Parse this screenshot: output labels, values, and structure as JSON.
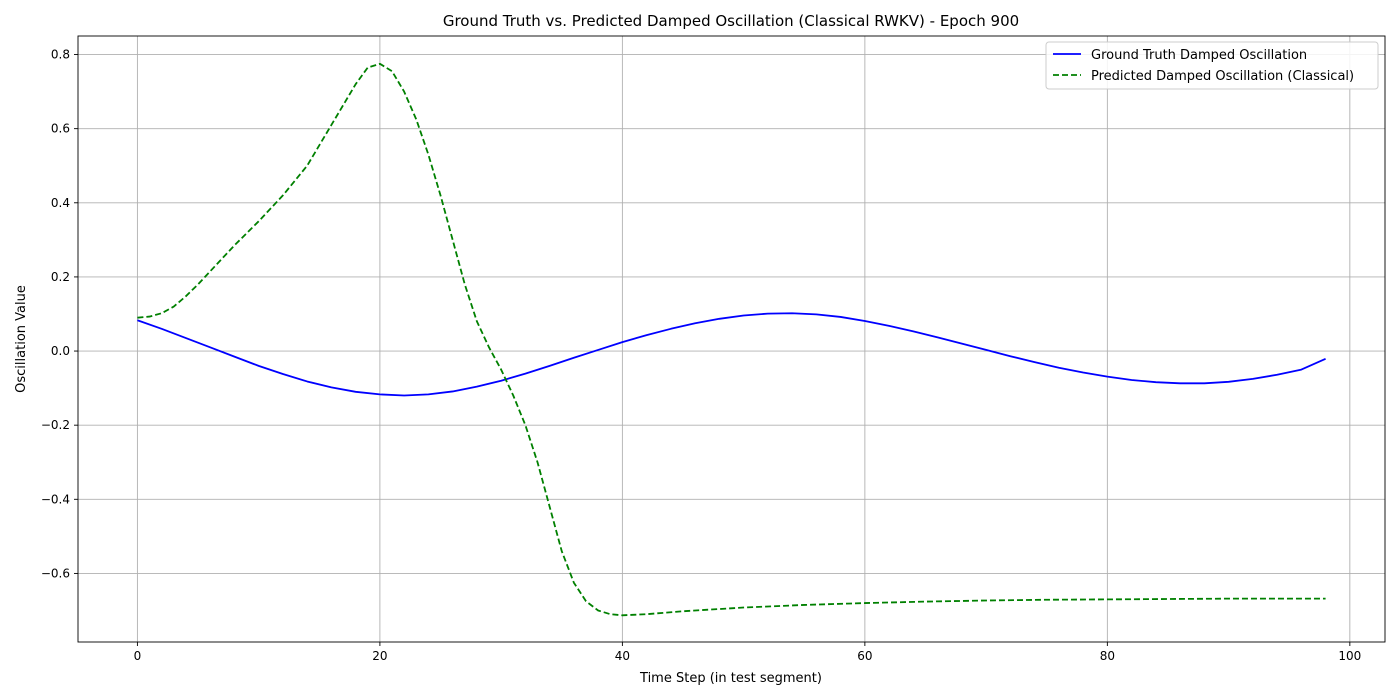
{
  "chart_data": {
    "type": "line",
    "title": "Ground Truth vs. Predicted Damped Oscillation (Classical RWKV) - Epoch 900",
    "xlabel": "Time Step (in test segment)",
    "ylabel": "Oscillation Value",
    "xlim": [
      -4.9,
      102.9
    ],
    "ylim": [
      -0.785,
      0.85
    ],
    "xticks": [
      0,
      20,
      40,
      60,
      80,
      100
    ],
    "yticks": [
      -0.6,
      -0.4,
      -0.2,
      0.0,
      0.2,
      0.4,
      0.6,
      0.8
    ],
    "xtick_labels": [
      "0",
      "20",
      "40",
      "60",
      "80",
      "100"
    ],
    "ytick_labels": [
      "−0.6",
      "−0.4",
      "−0.2",
      "0.0",
      "0.2",
      "0.4",
      "0.6",
      "0.8"
    ],
    "grid": true,
    "legend_position": "top-right",
    "series": [
      {
        "name": "Ground Truth Damped Oscillation",
        "color": "#0000ff",
        "style": "solid",
        "points": [
          [
            0,
            0.083
          ],
          [
            2,
            0.06
          ],
          [
            4,
            0.035
          ],
          [
            6,
            0.01
          ],
          [
            8,
            -0.015
          ],
          [
            10,
            -0.04
          ],
          [
            12,
            -0.062
          ],
          [
            14,
            -0.082
          ],
          [
            16,
            -0.098
          ],
          [
            18,
            -0.11
          ],
          [
            20,
            -0.117
          ],
          [
            22,
            -0.12
          ],
          [
            24,
            -0.117
          ],
          [
            26,
            -0.109
          ],
          [
            28,
            -0.096
          ],
          [
            30,
            -0.08
          ],
          [
            32,
            -0.061
          ],
          [
            34,
            -0.04
          ],
          [
            36,
            -0.018
          ],
          [
            38,
            0.003
          ],
          [
            40,
            0.024
          ],
          [
            42,
            0.043
          ],
          [
            44,
            0.06
          ],
          [
            46,
            0.075
          ],
          [
            48,
            0.087
          ],
          [
            50,
            0.096
          ],
          [
            52,
            0.101
          ],
          [
            54,
            0.102
          ],
          [
            56,
            0.099
          ],
          [
            58,
            0.092
          ],
          [
            60,
            0.081
          ],
          [
            62,
            0.068
          ],
          [
            64,
            0.053
          ],
          [
            66,
            0.037
          ],
          [
            68,
            0.02
          ],
          [
            70,
            0.003
          ],
          [
            72,
            -0.014
          ],
          [
            74,
            -0.03
          ],
          [
            76,
            -0.045
          ],
          [
            78,
            -0.058
          ],
          [
            80,
            -0.069
          ],
          [
            82,
            -0.078
          ],
          [
            84,
            -0.084
          ],
          [
            86,
            -0.087
          ],
          [
            88,
            -0.087
          ],
          [
            90,
            -0.083
          ],
          [
            92,
            -0.075
          ],
          [
            94,
            -0.064
          ],
          [
            96,
            -0.05
          ],
          [
            98,
            -0.021
          ]
        ]
      },
      {
        "name": "Predicted Damped Oscillation (Classical)",
        "color": "#008000",
        "style": "dashed",
        "points": [
          [
            0,
            0.09
          ],
          [
            1,
            0.093
          ],
          [
            2,
            0.102
          ],
          [
            3,
            0.12
          ],
          [
            4,
            0.148
          ],
          [
            5,
            0.18
          ],
          [
            6,
            0.215
          ],
          [
            8,
            0.285
          ],
          [
            10,
            0.35
          ],
          [
            12,
            0.42
          ],
          [
            14,
            0.5
          ],
          [
            16,
            0.61
          ],
          [
            18,
            0.72
          ],
          [
            19,
            0.765
          ],
          [
            20,
            0.775
          ],
          [
            21,
            0.755
          ],
          [
            22,
            0.7
          ],
          [
            23,
            0.625
          ],
          [
            24,
            0.53
          ],
          [
            25,
            0.42
          ],
          [
            26,
            0.3
          ],
          [
            27,
            0.18
          ],
          [
            28,
            0.08
          ],
          [
            29,
            0.01
          ],
          [
            30,
            -0.05
          ],
          [
            31,
            -0.12
          ],
          [
            32,
            -0.2
          ],
          [
            33,
            -0.3
          ],
          [
            34,
            -0.42
          ],
          [
            35,
            -0.54
          ],
          [
            36,
            -0.625
          ],
          [
            37,
            -0.675
          ],
          [
            38,
            -0.7
          ],
          [
            39,
            -0.71
          ],
          [
            40,
            -0.713
          ],
          [
            42,
            -0.71
          ],
          [
            45,
            -0.702
          ],
          [
            50,
            -0.692
          ],
          [
            55,
            -0.685
          ],
          [
            60,
            -0.68
          ],
          [
            65,
            -0.676
          ],
          [
            70,
            -0.673
          ],
          [
            75,
            -0.671
          ],
          [
            80,
            -0.67
          ],
          [
            85,
            -0.669
          ],
          [
            90,
            -0.668
          ],
          [
            95,
            -0.668
          ],
          [
            98,
            -0.668
          ]
        ]
      }
    ]
  }
}
